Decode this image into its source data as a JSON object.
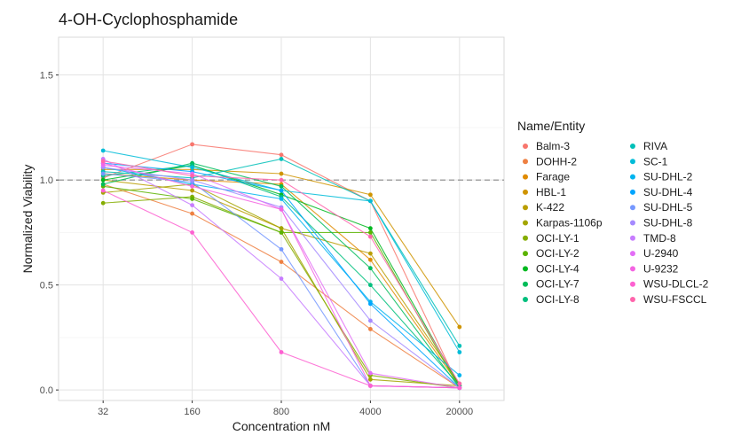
{
  "chart_data": {
    "type": "line",
    "title": "4-OH-Cyclophosphamide",
    "xlabel": "Concentration nM",
    "ylabel": "Normalized Viability",
    "x": [
      "32",
      "160",
      "800",
      "4000",
      "20000"
    ],
    "ylim": [
      -0.05,
      1.68
    ],
    "yticks": [
      "0.0",
      "0.5",
      "1.0",
      "1.5"
    ],
    "ytick_values": [
      0,
      0.5,
      1.0,
      1.5
    ],
    "reference_line": 1.0,
    "grid": true,
    "legend_title": "Name/Entity",
    "legend_position": "right",
    "series": [
      {
        "name": "Balm-3",
        "color": "#F8766D",
        "values": [
          1.01,
          1.17,
          1.12,
          0.9,
          0.01
        ]
      },
      {
        "name": "DOHH-2",
        "color": "#EE8042",
        "values": [
          0.98,
          0.84,
          0.61,
          0.29,
          0.01
        ]
      },
      {
        "name": "Farage",
        "color": "#E08B00",
        "values": [
          1.03,
          1.0,
          0.98,
          0.62,
          0.02
        ]
      },
      {
        "name": "HBL-1",
        "color": "#CF9400",
        "values": [
          1.05,
          1.05,
          1.03,
          0.93,
          0.3
        ]
      },
      {
        "name": "K-422",
        "color": "#BA9E00",
        "values": [
          1.0,
          0.95,
          0.77,
          0.65,
          0.03
        ]
      },
      {
        "name": "Karpas-1106p",
        "color": "#A3A500",
        "values": [
          0.94,
          0.98,
          0.77,
          0.05,
          0.02
        ]
      },
      {
        "name": "OCI-LY-1",
        "color": "#85AD00",
        "values": [
          0.89,
          0.92,
          0.75,
          0.07,
          0.01
        ]
      },
      {
        "name": "OCI-LY-2",
        "color": "#5BB300",
        "values": [
          0.97,
          0.91,
          0.75,
          0.75,
          0.01
        ]
      },
      {
        "name": "OCI-LY-4",
        "color": "#00B81F",
        "values": [
          1.0,
          1.07,
          0.93,
          0.77,
          0.02
        ]
      },
      {
        "name": "OCI-LY-7",
        "color": "#00BC59",
        "values": [
          0.98,
          1.08,
          0.97,
          0.58,
          0.01
        ]
      },
      {
        "name": "OCI-LY-8",
        "color": "#00BF7D",
        "values": [
          1.02,
          1.07,
          0.92,
          0.5,
          0.02
        ]
      },
      {
        "name": "RIVA",
        "color": "#00C0B8",
        "values": [
          1.04,
          1.01,
          1.1,
          0.9,
          0.21
        ]
      },
      {
        "name": "SC-1",
        "color": "#00BCD8",
        "values": [
          1.14,
          1.06,
          0.95,
          0.9,
          0.18
        ]
      },
      {
        "name": "SU-DHL-2",
        "color": "#00B4EF",
        "values": [
          1.06,
          0.98,
          0.91,
          0.42,
          0.07
        ]
      },
      {
        "name": "SU-DHL-4",
        "color": "#00A5FF",
        "values": [
          1.08,
          1.04,
          0.95,
          0.41,
          0.01
        ]
      },
      {
        "name": "SU-DHL-5",
        "color": "#7698FF",
        "values": [
          1.03,
          0.99,
          0.67,
          0.02,
          0.01
        ]
      },
      {
        "name": "SU-DHL-8",
        "color": "#A58AFF",
        "values": [
          1.06,
          1.0,
          0.87,
          0.33,
          0.01
        ]
      },
      {
        "name": "TMD-8",
        "color": "#C77CFF",
        "values": [
          1.1,
          0.88,
          0.53,
          0.02,
          0.01
        ]
      },
      {
        "name": "U-2940",
        "color": "#E36EF6",
        "values": [
          1.07,
          1.03,
          0.86,
          0.08,
          0.01
        ]
      },
      {
        "name": "U-9232",
        "color": "#F464E2",
        "values": [
          1.08,
          0.97,
          0.86,
          0.02,
          0.01
        ]
      },
      {
        "name": "WSU-DLCL-2",
        "color": "#FD61D1",
        "values": [
          0.95,
          0.75,
          0.18,
          0.02,
          0.01
        ]
      },
      {
        "name": "WSU-FSCCL",
        "color": "#FF65AC",
        "values": [
          1.09,
          1.02,
          1.0,
          0.73,
          0.03
        ]
      }
    ]
  }
}
